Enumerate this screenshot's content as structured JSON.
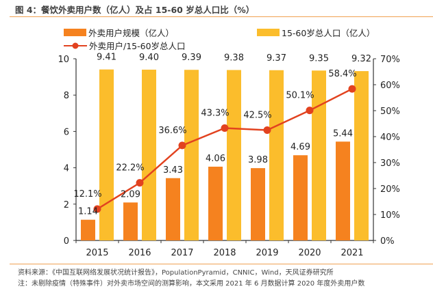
{
  "header": {
    "title": "图 4：餐饮外卖用户数（亿人）及占 15-60 岁总人口比（%）"
  },
  "footer": {
    "source": "资料来源：《中国互联网络发展状况统计报告》，PopulationPyramid，CNNIC，Wind，天风证券研究所",
    "note": "注：未剔除疫情（特殊事件）对外卖市场空间的测算影响，本文采用 2021 年 6 月数据计算 2020 年度外卖用户数"
  },
  "chart_data": {
    "type": "bar",
    "title": "餐饮外卖用户数（亿人）及占 15-60 岁总人口比（%）",
    "categories": [
      "2015",
      "2016",
      "2017",
      "2018",
      "2019",
      "2020",
      "2021"
    ],
    "series": [
      {
        "name": "外卖用户规模（亿人）",
        "type": "bar",
        "axis": "left",
        "color": "#f5821f",
        "values": [
          1.14,
          2.09,
          3.43,
          4.06,
          3.98,
          4.69,
          5.44
        ],
        "labels": [
          "1.14",
          "2.09",
          "3.43",
          "4.06",
          "3.98",
          "4.69",
          "5.44"
        ]
      },
      {
        "name": "15-60岁总人口（亿人）",
        "type": "bar",
        "axis": "left",
        "color": "#fbbd2c",
        "values": [
          9.41,
          9.4,
          9.39,
          9.38,
          9.37,
          9.35,
          9.32
        ],
        "labels": [
          "9.41",
          "9.40",
          "9.39",
          "9.38",
          "9.37",
          "9.35",
          "9.32"
        ]
      },
      {
        "name": "外卖用户/15-60岁总人口",
        "type": "line",
        "axis": "right",
        "color": "#e2421f",
        "values": [
          12.1,
          22.2,
          36.6,
          43.3,
          42.5,
          50.1,
          58.4
        ],
        "labels": [
          "12.1%",
          "22.2%",
          "36.6%",
          "43.3%",
          "42.5%",
          "50.1%",
          "58.4%"
        ]
      }
    ],
    "left_axis": {
      "ylim": [
        0,
        10
      ],
      "ticks": [
        "0",
        "2",
        "4",
        "6",
        "8",
        "10"
      ]
    },
    "right_axis": {
      "ylim": [
        0,
        70
      ],
      "ticks": [
        "0%",
        "10%",
        "20%",
        "30%",
        "40%",
        "50%",
        "60%",
        "70%"
      ]
    },
    "xlabel": "",
    "ylabel": "",
    "grid": false,
    "legend_position": "top"
  }
}
